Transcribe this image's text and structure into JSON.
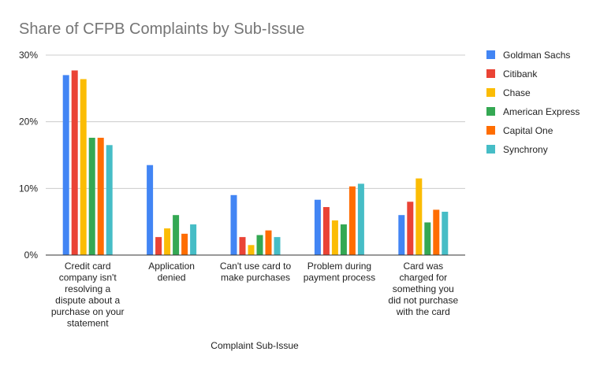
{
  "chart_data": {
    "type": "bar",
    "title": "Share of CFPB Complaints by Sub-Issue",
    "xlabel": "Complaint Sub-Issue",
    "ylabel": "",
    "ylim": [
      0,
      30
    ],
    "yticks": [
      {
        "value": 0,
        "label": "0%"
      },
      {
        "value": 10,
        "label": "10%"
      },
      {
        "value": 20,
        "label": "20%"
      },
      {
        "value": 30,
        "label": "30%"
      }
    ],
    "grid": true,
    "legend_position": "right",
    "categories": [
      [
        "Credit card",
        "company isn't",
        "resolving a",
        "dispute about a",
        "purchase on your",
        "statement"
      ],
      [
        "Application",
        "denied"
      ],
      [
        "Can't use card to",
        "make purchases"
      ],
      [
        "Problem during",
        "payment process"
      ],
      [
        "Card was",
        "charged for",
        "something you",
        "did not purchase",
        "with the card"
      ]
    ],
    "series": [
      {
        "name": "Goldman Sachs",
        "color": "#4285F4",
        "values": [
          27.0,
          13.5,
          9.0,
          8.3,
          6.0
        ]
      },
      {
        "name": "Citibank",
        "color": "#EA4335",
        "values": [
          27.7,
          2.7,
          2.7,
          7.2,
          8.0
        ]
      },
      {
        "name": "Chase",
        "color": "#FBBC04",
        "values": [
          26.4,
          4.0,
          1.5,
          5.2,
          11.5
        ]
      },
      {
        "name": "American Express",
        "color": "#34A853",
        "values": [
          17.6,
          6.0,
          3.0,
          4.6,
          4.9
        ]
      },
      {
        "name": "Capital One",
        "color": "#FF6D01",
        "values": [
          17.6,
          3.2,
          3.7,
          10.3,
          6.8
        ]
      },
      {
        "name": "Synchrony",
        "color": "#46BDC6",
        "values": [
          16.5,
          4.6,
          2.7,
          10.7,
          6.5
        ]
      }
    ]
  }
}
